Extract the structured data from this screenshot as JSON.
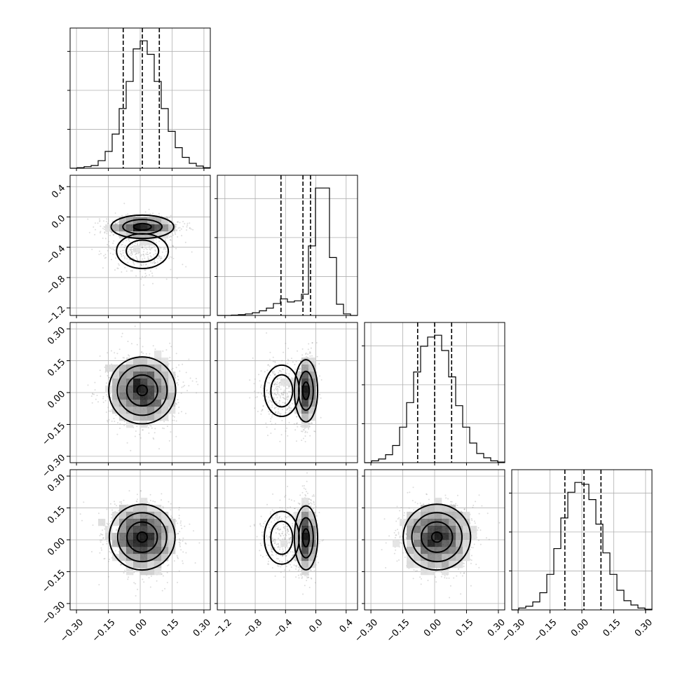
{
  "chart_data": {
    "type": "corner",
    "title": "",
    "n_params": 4,
    "axes": [
      {
        "lim": [
          -0.33,
          0.33
        ],
        "ticks": [
          "−0.30",
          "−0.15",
          "0.00",
          "0.15",
          "0.30"
        ],
        "tick_values": [
          -0.3,
          -0.15,
          0.0,
          0.15,
          0.3
        ]
      },
      {
        "lim": [
          -1.3,
          0.55
        ],
        "ticks": [
          "−1.2",
          "−0.8",
          "−0.4",
          "0.0",
          "0.4"
        ],
        "tick_values": [
          -1.2,
          -0.8,
          -0.4,
          0.0,
          0.4
        ]
      },
      {
        "lim": [
          -0.33,
          0.33
        ],
        "ticks": [
          "−0.30",
          "−0.15",
          "0.00",
          "0.15",
          "0.30"
        ],
        "tick_values": [
          -0.3,
          -0.15,
          0.0,
          0.15,
          0.3
        ]
      },
      {
        "lim": [
          -0.33,
          0.33
        ],
        "ticks": [
          "−0.30",
          "−0.15",
          "0.00",
          "0.15",
          "0.30"
        ],
        "tick_values": [
          -0.3,
          -0.15,
          0.0,
          0.15,
          0.3
        ]
      }
    ],
    "histograms": [
      {
        "param": 0,
        "bin_edges_range": [
          -0.33,
          0.33
        ],
        "counts": [
          0,
          1,
          3,
          5,
          14,
          31,
          63,
          110,
          160,
          220,
          235,
          210,
          160,
          110,
          68,
          38,
          20,
          9,
          4,
          1
        ],
        "quantiles": [
          -0.08,
          0.01,
          0.09
        ]
      },
      {
        "param": 1,
        "bin_edges_range": [
          -1.3,
          0.55
        ],
        "counts": [
          0,
          0,
          1,
          2,
          4,
          7,
          12,
          19,
          31,
          43,
          35,
          38,
          55,
          180,
          330,
          330,
          150,
          29,
          4,
          0
        ],
        "quantiles": [
          -0.46,
          -0.17,
          -0.07
        ]
      },
      {
        "param": 2,
        "bin_edges_range": [
          -0.33,
          0.33
        ],
        "counts": [
          0,
          3,
          6,
          13,
          28,
          58,
          98,
          148,
          190,
          205,
          208,
          183,
          140,
          93,
          58,
          32,
          15,
          8,
          3,
          1
        ],
        "quantiles": [
          -0.08,
          0.0,
          0.08
        ]
      },
      {
        "param": 3,
        "bin_edges_range": [
          -0.33,
          0.33
        ],
        "counts": [
          0,
          3,
          6,
          13,
          28,
          58,
          100,
          150,
          192,
          208,
          205,
          180,
          140,
          93,
          58,
          32,
          15,
          8,
          3,
          1
        ],
        "quantiles": [
          -0.08,
          0.01,
          0.09
        ]
      }
    ],
    "scatter_panels": [
      {
        "row": 1,
        "col": 0
      },
      {
        "row": 2,
        "col": 0
      },
      {
        "row": 2,
        "col": 1
      },
      {
        "row": 3,
        "col": 0
      },
      {
        "row": 3,
        "col": 1
      },
      {
        "row": 3,
        "col": 2
      }
    ]
  }
}
